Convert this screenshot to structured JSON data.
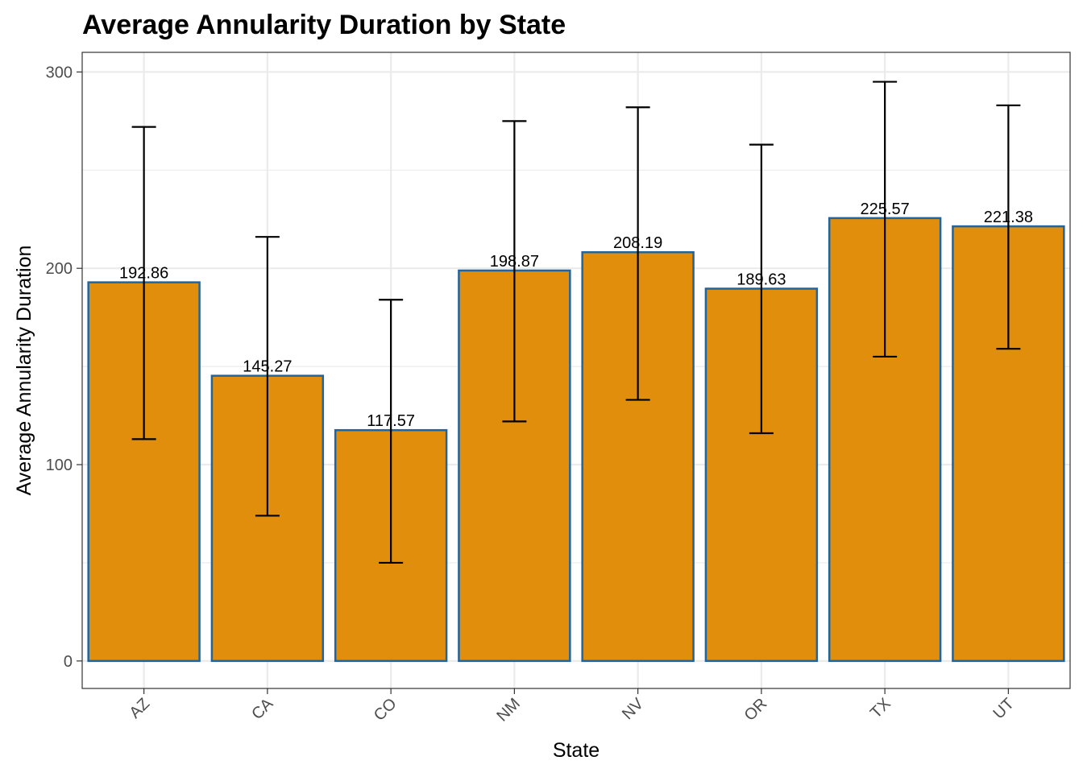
{
  "chart_data": {
    "type": "bar",
    "title": "Average Annularity Duration by State",
    "xlabel": "State",
    "ylabel": "Average Annularity Duration",
    "categories": [
      "AZ",
      "CA",
      "CO",
      "NM",
      "NV",
      "OR",
      "TX",
      "UT"
    ],
    "values": [
      192.86,
      145.27,
      117.57,
      198.87,
      208.19,
      189.63,
      225.57,
      221.38
    ],
    "value_labels": [
      "192.86",
      "145.27",
      "117.57",
      "198.87",
      "208.19",
      "189.63",
      "225.57",
      "221.38"
    ],
    "error_low": [
      113,
      74,
      50,
      122,
      133,
      116,
      155,
      159
    ],
    "error_high": [
      272,
      216,
      184,
      275,
      282,
      263,
      295,
      283
    ],
    "ylim": [
      -14,
      310
    ],
    "y_ticks": [
      0,
      100,
      200,
      300
    ],
    "y_tick_labels": [
      "0",
      "100",
      "200",
      "300"
    ],
    "grid": true,
    "colors": {
      "bar_fill": "#E08E0B",
      "bar_stroke": "#1F65A0",
      "error_bar": "#000000",
      "grid": "#EBEBEB",
      "panel_border": "#333333"
    }
  }
}
